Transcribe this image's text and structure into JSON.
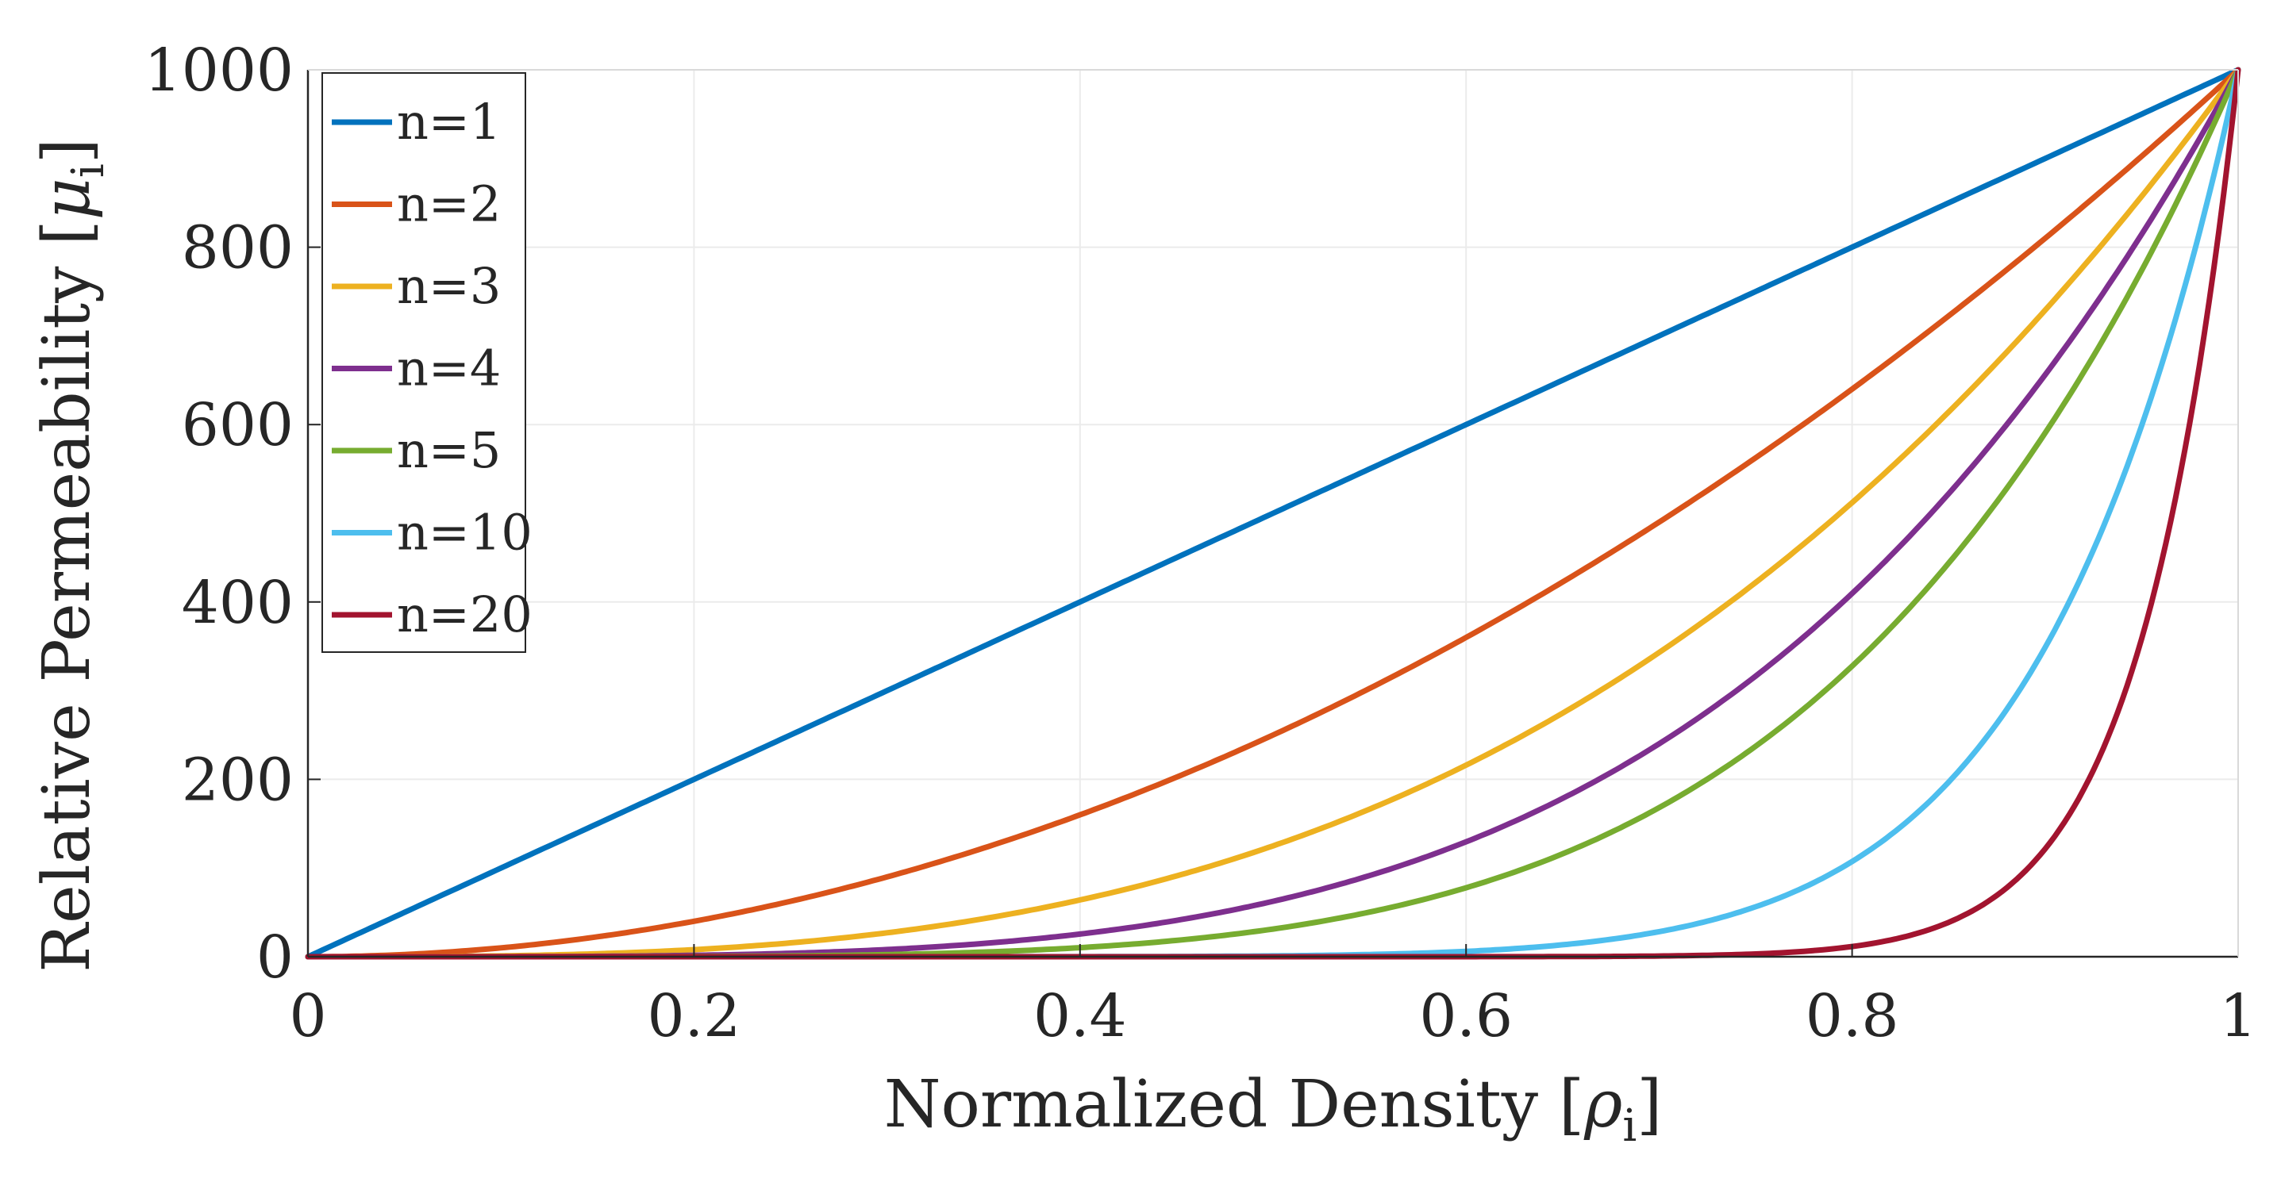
{
  "chart_data": {
    "type": "line",
    "title": "",
    "xlabel": "Normalized Density",
    "xlabel_symbol": "ρ",
    "xlabel_subscript": "i",
    "ylabel": "Relative Permeability",
    "ylabel_symbol": "μ",
    "ylabel_subscript": "i",
    "xlim": [
      0,
      1
    ],
    "ylim": [
      0,
      1000
    ],
    "grid": true,
    "legend_position": "top-left",
    "x_ticks": [
      {
        "value": 0,
        "label": "0"
      },
      {
        "value": 0.2,
        "label": "0.2"
      },
      {
        "value": 0.4,
        "label": "0.4"
      },
      {
        "value": 0.6,
        "label": "0.6"
      },
      {
        "value": 0.8,
        "label": "0.8"
      },
      {
        "value": 1,
        "label": "1"
      }
    ],
    "y_ticks": [
      {
        "value": 0,
        "label": "0"
      },
      {
        "value": 200,
        "label": "200"
      },
      {
        "value": 400,
        "label": "400"
      },
      {
        "value": 600,
        "label": "600"
      },
      {
        "value": 800,
        "label": "800"
      },
      {
        "value": 1000,
        "label": "1000"
      }
    ],
    "x": [
      0,
      0.05,
      0.1,
      0.15,
      0.2,
      0.25,
      0.3,
      0.35,
      0.4,
      0.45,
      0.5,
      0.55,
      0.6,
      0.65,
      0.7,
      0.75,
      0.8,
      0.85,
      0.9,
      0.925,
      0.95,
      0.975,
      1
    ],
    "series": [
      {
        "name": "n=1",
        "color": "#0072BD",
        "values": [
          0,
          50,
          100,
          150,
          200,
          250,
          300,
          350,
          400,
          450,
          500,
          550,
          600,
          650,
          700,
          750,
          800,
          850,
          900,
          925,
          950,
          975,
          1000
        ]
      },
      {
        "name": "n=2",
        "color": "#D95319",
        "values": [
          0,
          2.5,
          10,
          22.5,
          40,
          62.5,
          90,
          122.5,
          160,
          202.5,
          250,
          302.5,
          360,
          422.5,
          490,
          562.5,
          640,
          722.5,
          810,
          855.6,
          902.5,
          950.6,
          1000
        ]
      },
      {
        "name": "n=3",
        "color": "#EDB120",
        "values": [
          0,
          0.1,
          1,
          3.4,
          8,
          15.6,
          27,
          42.9,
          64,
          91.1,
          125,
          166.4,
          216,
          274.6,
          343,
          421.9,
          512,
          614.1,
          729,
          791.5,
          857.4,
          926.9,
          1000
        ]
      },
      {
        "name": "n=4",
        "color": "#7E2F8E",
        "values": [
          0,
          0,
          0.1,
          0.5,
          1.6,
          3.9,
          8.1,
          15,
          25.6,
          41,
          62.5,
          91.5,
          129.6,
          178.5,
          240.1,
          316.4,
          409.6,
          522,
          656.1,
          732.1,
          814.5,
          903.7,
          1000
        ]
      },
      {
        "name": "n=5",
        "color": "#77AC30",
        "values": [
          0,
          0,
          0,
          0.1,
          0.3,
          1,
          2.4,
          5.3,
          10.2,
          18.5,
          31.3,
          50.3,
          77.8,
          116,
          168.1,
          237.3,
          327.7,
          443.7,
          590.5,
          677.2,
          773.8,
          881.1,
          1000
        ]
      },
      {
        "name": "n=10",
        "color": "#4DBEEE",
        "values": [
          0,
          0,
          0,
          0,
          0,
          0,
          0,
          0,
          0.1,
          0.3,
          1,
          2.5,
          6,
          13.5,
          28.2,
          56.3,
          107.4,
          196.9,
          348.7,
          458.2,
          598.7,
          776.3,
          1000
        ]
      },
      {
        "name": "n=20",
        "color": "#A2142F",
        "values": [
          0,
          0,
          0,
          0,
          0,
          0,
          0,
          0,
          0,
          0,
          0,
          0,
          0,
          0.2,
          0.8,
          3.2,
          11.5,
          38.8,
          121.6,
          209.9,
          358.5,
          602.7,
          1000
        ]
      }
    ]
  }
}
